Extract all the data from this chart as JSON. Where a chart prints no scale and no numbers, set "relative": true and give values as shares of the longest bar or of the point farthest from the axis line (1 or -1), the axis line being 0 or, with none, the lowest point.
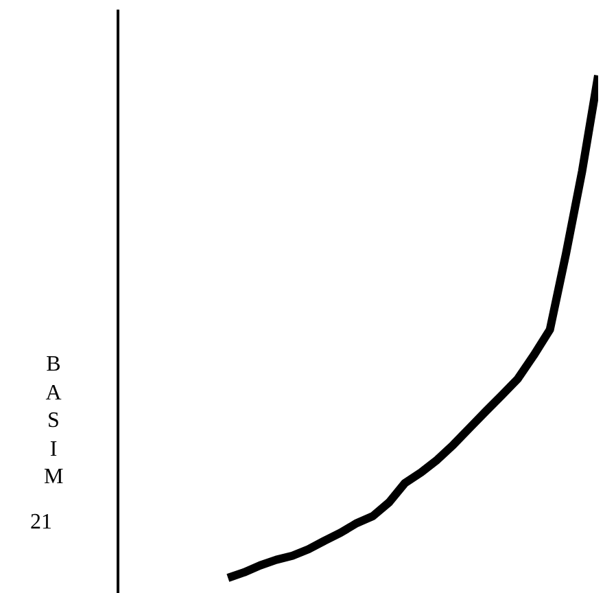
{
  "chart_data": {
    "type": "line",
    "annotations": [
      "BASIM",
      "21"
    ],
    "relative": true,
    "legend": false,
    "marker": "none",
    "line_style": "solid",
    "categories": [
      null,
      null,
      null,
      null,
      null,
      null,
      null,
      null,
      null,
      null,
      null,
      null,
      null,
      null,
      null,
      null,
      null,
      null,
      null,
      null,
      null,
      null,
      null,
      null
    ],
    "series": [
      {
        "color": "#000000",
        "values": [
          0,
          0.011,
          0.025,
          0.036,
          0.044,
          0.057,
          0.074,
          0.09,
          0.109,
          0.123,
          0.15,
          0.189,
          0.21,
          0.235,
          0.265,
          0.298,
          0.331,
          0.363,
          0.396,
          0.443,
          0.494,
          0.645,
          0.809,
          1
        ]
      }
    ]
  }
}
